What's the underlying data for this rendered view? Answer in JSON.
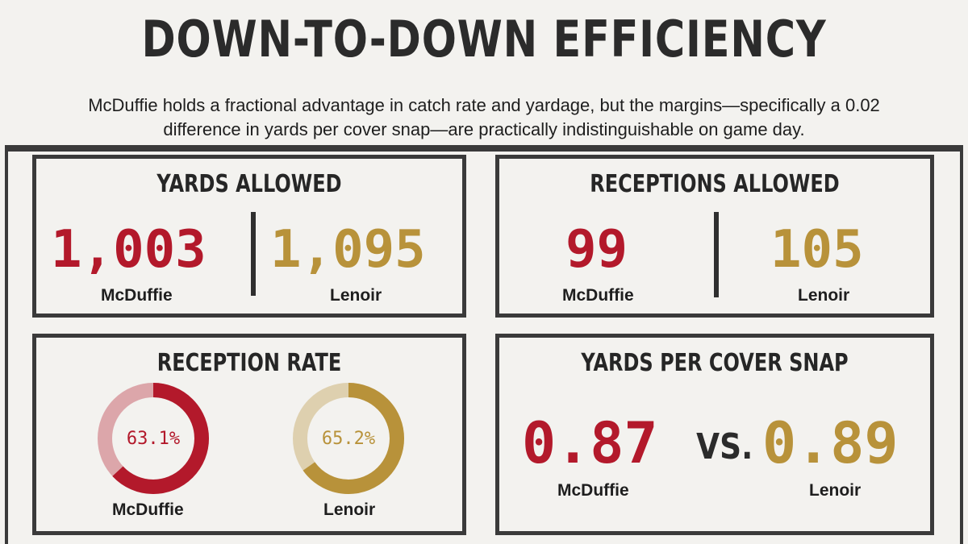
{
  "title": "DOWN-TO-DOWN EFFICIENCY",
  "subtitle": "McDuffie holds a fractional advantage in catch rate and yardage, but the margins—specifically a 0.02 difference in yards per cover snap—are practically indistinguishable on game day.",
  "colors": {
    "mcduffie": "#b3192b",
    "lenoir": "#b8923a",
    "dark": "#3a3a3a"
  },
  "yards_allowed": {
    "title": "YARDS ALLOWED",
    "mcduffie_value": "1,003",
    "mcduffie_label": "McDuffie",
    "lenoir_value": "1,095",
    "lenoir_label": "Lenoir"
  },
  "receptions_allowed": {
    "title": "RECEPTIONS ALLOWED",
    "mcduffie_value": "99",
    "mcduffie_label": "McDuffie",
    "lenoir_value": "105",
    "lenoir_label": "Lenoir"
  },
  "reception_rate": {
    "title": "RECEPTION RATE",
    "mcduffie_value": "63.1%",
    "mcduffie_pct": 63.1,
    "mcduffie_label": "McDuffie",
    "lenoir_value": "65.2%",
    "lenoir_pct": 65.2,
    "lenoir_label": "Lenoir"
  },
  "yards_per_cover_snap": {
    "title": "YARDS PER COVER SNAP",
    "mcduffie_value": "0.87",
    "mcduffie_label": "McDuffie",
    "vs": "VS.",
    "lenoir_value": "0.89",
    "lenoir_label": "Lenoir"
  }
}
